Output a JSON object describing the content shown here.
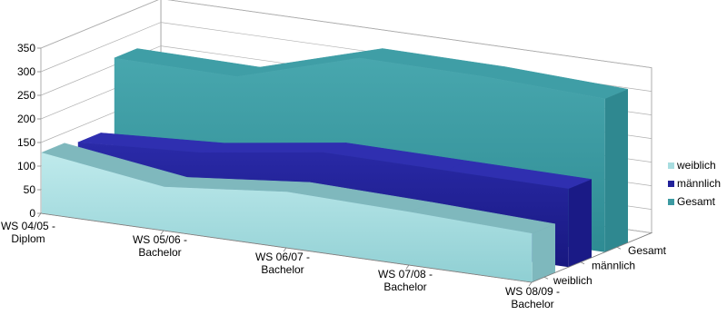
{
  "chart_data": {
    "type": "area",
    "title": "",
    "xlabel": "",
    "ylabel": "",
    "ylim": [
      0,
      350
    ],
    "y_ticks": [
      "0",
      "50",
      "100",
      "150",
      "200",
      "250",
      "300",
      "350"
    ],
    "categories": [
      [
        "WS 04/05 -",
        "Diplom"
      ],
      [
        "WS 05/06 -",
        "Bachelor"
      ],
      [
        "WS 06/07 -",
        "Bachelor"
      ],
      [
        "WS 07/08 -",
        "Bachelor"
      ],
      [
        "WS 08/09 -",
        "Bachelor"
      ]
    ],
    "series": [
      {
        "name": "weiblich",
        "values": [
          128,
          92,
          118,
          112,
          103
        ],
        "color": "#a8dde0"
      },
      {
        "name": "männlich",
        "values": [
          118,
          133,
          170,
          168,
          166
        ],
        "color": "#22229a"
      },
      {
        "name": "Gesamt",
        "values": [
          265,
          262,
          338,
          336,
          325
        ],
        "color": "#3d9aa2"
      }
    ],
    "depth_labels": [
      "weiblich",
      "männlich",
      "Gesamt"
    ],
    "legend_position": "right",
    "grid": true
  }
}
